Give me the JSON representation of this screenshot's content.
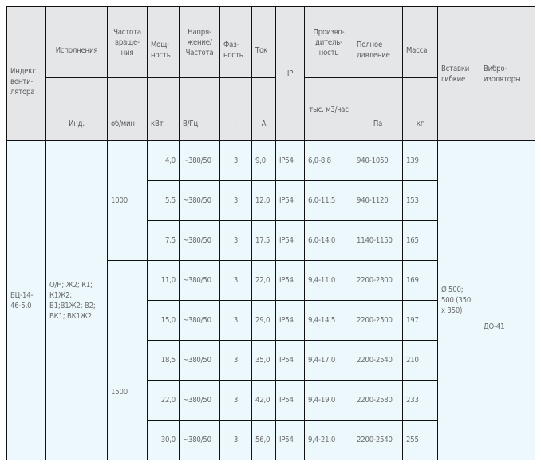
{
  "header": {
    "index": "Индекс венти-лятора",
    "variants": "Исполнения",
    "rpm": "Частота враще-ния",
    "power": "Мощ-ность",
    "voltage": "Напря-жение/ Частота",
    "phase": "Фаз-ность",
    "current": "Ток",
    "ip": "IP",
    "capacity": "Произво-дитель-ность",
    "pressure": "Полное давление",
    "mass": "Масса",
    "inserts": "Вставки гибкие",
    "vibro": "Вибро-изоляторы",
    "units": {
      "variants": "Инд.",
      "rpm": "об/мин",
      "power": "кВт",
      "voltage": "В/Гц",
      "phase": "–",
      "current": "А",
      "capacity": "тыс. м3/час",
      "pressure": "Па",
      "mass": "кг"
    }
  },
  "body": {
    "index": "ВЦ-14-46-5,0",
    "variants": "О/Н; Ж2; К1; К1Ж2; В1;В1Ж2; В2; ВК1; ВК1Ж2",
    "rpm_groups": [
      "1000",
      "1500"
    ],
    "inserts": "Ø 500; 500 (350 x 350)",
    "vibro": "ДО-41",
    "rows": [
      {
        "power": "4,0",
        "voltage": "~380/50",
        "phase": "3",
        "current": "9,0",
        "ip": "IP54",
        "capacity": "6,0-8,8",
        "pressure": "940-1050",
        "mass": "139"
      },
      {
        "power": "5,5",
        "voltage": "~380/50",
        "phase": "3",
        "current": "12,0",
        "ip": "IP54",
        "capacity": "6,0-11,5",
        "pressure": "940-1120",
        "mass": "153"
      },
      {
        "power": "7,5",
        "voltage": "~380/50",
        "phase": "3",
        "current": "17,5",
        "ip": "IP54",
        "capacity": "6,0-14,0",
        "pressure": "1140-1150",
        "mass": "165"
      },
      {
        "power": "11,0",
        "voltage": "~380/50",
        "phase": "3",
        "current": "22,0",
        "ip": "IP54",
        "capacity": "9,4-11,0",
        "pressure": "2200-2300",
        "mass": "169"
      },
      {
        "power": "15,0",
        "voltage": "~380/50",
        "phase": "3",
        "current": "29,0",
        "ip": "IP54",
        "capacity": "9,4-14,5",
        "pressure": "2200-2500",
        "mass": "197"
      },
      {
        "power": "18,5",
        "voltage": "~380/50",
        "phase": "3",
        "current": "35,0",
        "ip": "IP54",
        "capacity": "9,4-17,0",
        "pressure": "2200-2540",
        "mass": "210"
      },
      {
        "power": "22,0",
        "voltage": "~380/50",
        "phase": "3",
        "current": "42,0",
        "ip": "IP54",
        "capacity": "9,4-19,0",
        "pressure": "2200-2580",
        "mass": "233"
      },
      {
        "power": "30,0",
        "voltage": "~380/50",
        "phase": "3",
        "current": "56,0",
        "ip": "IP54",
        "capacity": "9,4-21,0",
        "pressure": "2200-2540",
        "mass": "255"
      }
    ]
  }
}
